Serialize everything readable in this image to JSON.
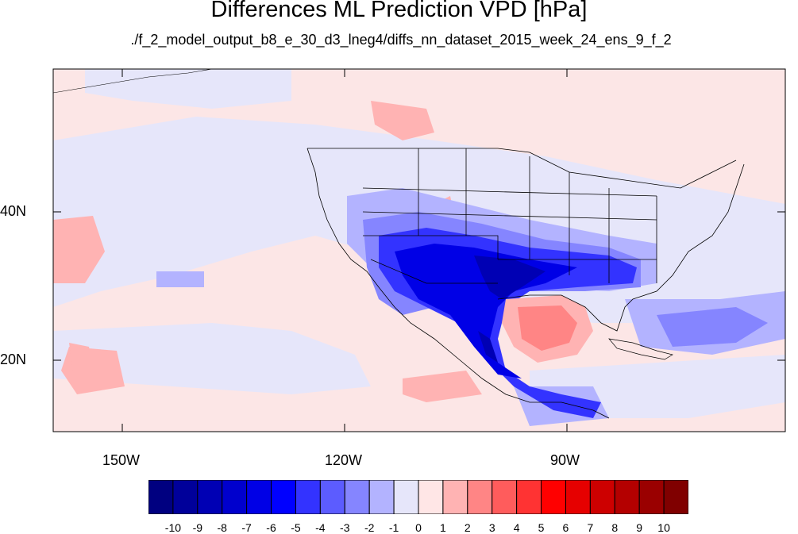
{
  "title": "Differences ML Prediction VPD [hPa]",
  "subtitle": "./f_2_model_output_b8_e_30_d3_lneg4/diffs_nn_dataset_2015_week_24_ens_9_f_2",
  "map": {
    "lon_labels": [
      "150W",
      "120W",
      "90W"
    ],
    "lat_labels": [
      "40N",
      "20N"
    ]
  },
  "colorbar": {
    "labels": [
      "-10",
      "-9",
      "-8",
      "-7",
      "-6",
      "-5",
      "-4",
      "-3",
      "-2",
      "-1",
      "0",
      "1",
      "2",
      "3",
      "4",
      "5",
      "6",
      "7",
      "8",
      "9",
      "10"
    ],
    "colors": [
      "#000080",
      "#00009a",
      "#0000b4",
      "#0000cd",
      "#0000e6",
      "#0000ff",
      "#3333ff",
      "#5c5cff",
      "#8585ff",
      "#b3b3ff",
      "#e6e6fa",
      "#ffe6e6",
      "#ffb3b3",
      "#ff8585",
      "#ff5c5c",
      "#ff3333",
      "#ff0000",
      "#e60000",
      "#cd0000",
      "#b40000",
      "#9a0000",
      "#800000"
    ]
  }
}
